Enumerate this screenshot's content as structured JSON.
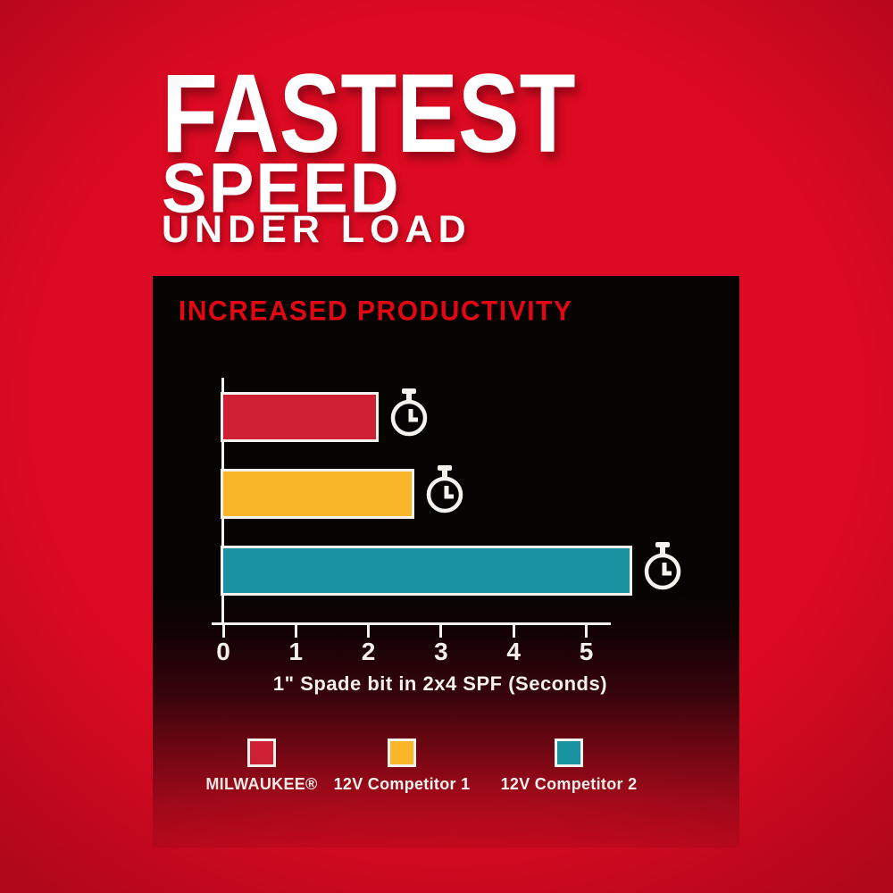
{
  "page": {
    "background_color": "#dc0a22",
    "panel_background_color": "#060303"
  },
  "headline": {
    "line1": "FASTEST",
    "line2": "SPEED",
    "line3": "UNDER LOAD",
    "color": "#ffffff"
  },
  "panel": {
    "title": "INCREASED PRODUCTIVITY",
    "title_color": "#e30613"
  },
  "chart_data": {
    "type": "bar",
    "orientation": "horizontal",
    "title": "INCREASED PRODUCTIVITY",
    "categories": [
      "MILWAUKEE®",
      "12V Competitor 1",
      "12V Competitor 2"
    ],
    "values": [
      2.1,
      2.6,
      5.6
    ],
    "xlabel": "1\" Spade bit in 2x4 SPF (Seconds)",
    "xticks": [
      0,
      1,
      2,
      3,
      4,
      5
    ],
    "xlim": [
      0,
      5.5
    ],
    "grid": false,
    "bar_colors": [
      "#ce2136",
      "#f9b629",
      "#1892a0"
    ],
    "bar_border_color": "#f5f1ed",
    "axis_color": "#f5f1ed",
    "bar_icon": "stopwatch-icon",
    "legend_position": "bottom"
  }
}
